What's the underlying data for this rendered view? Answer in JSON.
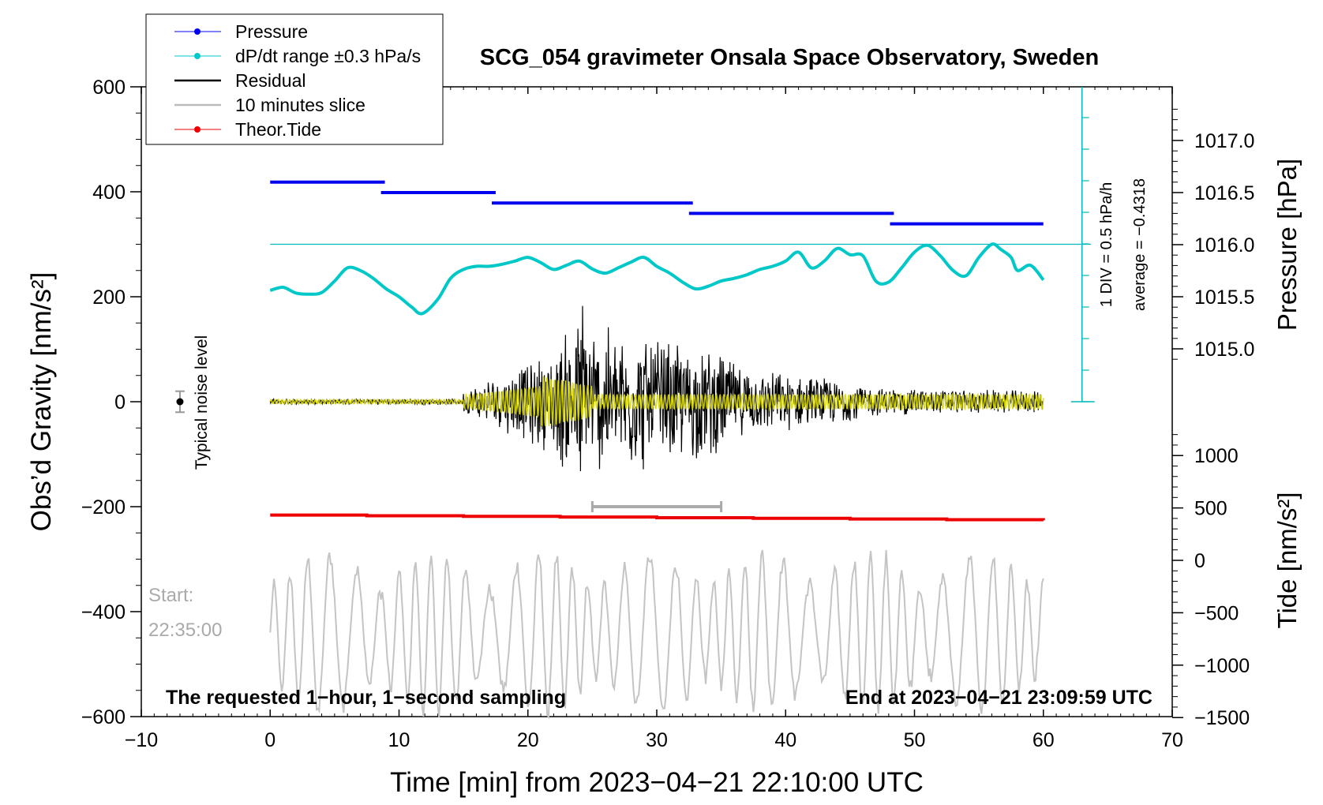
{
  "chart_data": {
    "type": "line",
    "title": "SCG_054 gravimeter Onsala Space Observatory, Sweden",
    "xlabel": "Time [min] from 2023−04−21 22:10:00 UTC",
    "ylabel_left": "Obs’d Gravity [nm/s²]",
    "ylabel_right_top": "Pressure [hPa]",
    "ylabel_right_bottom": "Tide [nm/s²]",
    "xlim": [
      -10,
      70
    ],
    "ylim": [
      -600,
      600
    ],
    "x_ticks": [
      -10,
      0,
      10,
      20,
      30,
      40,
      50,
      60,
      70
    ],
    "x_tick_labels": [
      "−10",
      "0",
      "10",
      "20",
      "30",
      "40",
      "50",
      "60",
      "70"
    ],
    "y_ticks": [
      -600,
      -400,
      -200,
      0,
      200,
      400,
      600
    ],
    "y_tick_labels": [
      "−600",
      "−400",
      "−200",
      "0",
      "200",
      "400",
      "600"
    ],
    "pressure_axis": {
      "ticks": [
        1015.0,
        1015.5,
        1016.0,
        1016.5,
        1017.0
      ],
      "tick_labels": [
        "1015.0",
        "1015.5",
        "1016.0",
        "1016.5",
        "1017.0"
      ]
    },
    "tide_axis": {
      "ticks": [
        -1500,
        -1000,
        -500,
        0,
        500,
        1000
      ],
      "tick_labels": [
        "−1500",
        "−1000",
        "−500",
        "0",
        "500",
        "1000"
      ]
    },
    "legend": {
      "position": "top-left",
      "entries": [
        {
          "label": "Pressure",
          "color": "#0000ee",
          "marker": true
        },
        {
          "label": "dP/dt range ±0.3 hPa/s",
          "color": "#00c8c8",
          "marker": true
        },
        {
          "label": "Residual",
          "color": "#000000",
          "marker": false
        },
        {
          "label": "10 minutes slice",
          "color": "#bbbbbb",
          "marker": false
        },
        {
          "label": "Theor.Tide",
          "color": "#ee0000",
          "marker": true
        }
      ]
    },
    "series": [
      {
        "name": "Pressure",
        "units": "hPa",
        "steps": [
          {
            "x0": 0,
            "x1": 8.9,
            "value": 1016.6
          },
          {
            "x0": 8.6,
            "x1": 17.5,
            "value": 1016.5
          },
          {
            "x0": 17.2,
            "x1": 32.8,
            "value": 1016.4
          },
          {
            "x0": 32.5,
            "x1": 48.4,
            "value": 1016.3
          },
          {
            "x0": 48.1,
            "x1": 60,
            "value": 1016.2
          }
        ]
      },
      {
        "name": "dP/dt",
        "units": "nm/s² scale",
        "x": [
          0,
          1,
          2,
          3,
          4,
          5,
          6,
          7,
          8,
          9,
          10,
          11,
          11.8,
          13,
          14,
          15,
          16,
          17,
          18,
          19,
          20,
          21,
          22,
          23,
          24,
          25,
          26,
          27,
          28,
          29,
          30,
          31,
          32,
          33,
          34,
          35,
          36,
          37,
          38,
          39,
          40,
          41,
          42,
          43,
          44,
          45,
          46,
          47,
          48,
          49,
          50,
          51,
          52,
          53,
          54,
          55,
          56,
          56.7,
          57.5,
          58,
          59,
          60
        ],
        "y": [
          212,
          218,
          207,
          205,
          208,
          230,
          255,
          250,
          235,
          215,
          200,
          180,
          168,
          195,
          235,
          252,
          258,
          258,
          262,
          268,
          275,
          265,
          252,
          260,
          268,
          253,
          245,
          255,
          266,
          275,
          258,
          245,
          228,
          215,
          220,
          230,
          235,
          242,
          252,
          258,
          268,
          285,
          255,
          268,
          292,
          280,
          278,
          230,
          228,
          255,
          285,
          298,
          278,
          250,
          240,
          275,
          300,
          290,
          275,
          250,
          260,
          232
        ]
      },
      {
        "name": "Theor.Tide",
        "units": "nm/s²",
        "x": [
          0,
          60
        ],
        "y": [
          -216,
          -226
        ]
      }
    ],
    "annotations": {
      "noise_label": "Typical noise level",
      "noise_value": 0,
      "noise_error": 20,
      "start_label": "Start:",
      "start_time": "22:35:00",
      "slice_range_min": [
        25,
        35
      ],
      "div_label": "1 DIV = 0.5 hPa/h",
      "average_label": "average = −0.4318",
      "reference_line_y": 300,
      "footer_left": "The requested 1−hour, 1−second sampling",
      "footer_right": "End at 2023−04−21 23:09:59 UTC"
    }
  }
}
